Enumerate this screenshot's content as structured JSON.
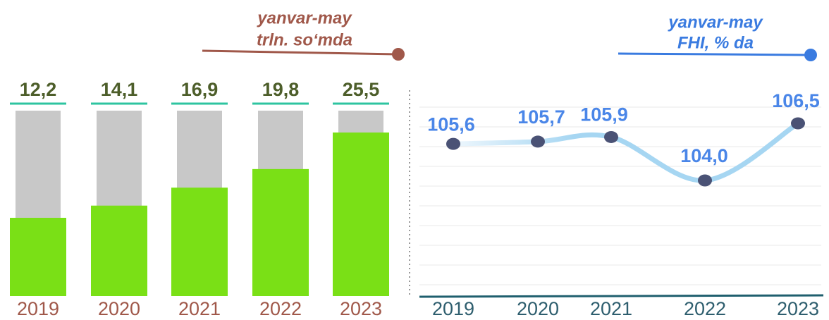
{
  "chart_data": [
    {
      "type": "bar",
      "annotation": [
        "yanvar-may",
        "trln. so‘mda"
      ],
      "categories": [
        "2019",
        "2020",
        "2021",
        "2022",
        "2023"
      ],
      "values": [
        12.2,
        14.1,
        16.9,
        19.8,
        25.5
      ],
      "value_labels": [
        "12,2",
        "14,1",
        "16,9",
        "19,8",
        "25,5"
      ],
      "color": "#7ae016"
    },
    {
      "type": "line",
      "annotation": [
        "yanvar-may",
        "FHI, % da"
      ],
      "categories": [
        "2019",
        "2020",
        "2021",
        "2022",
        "2023"
      ],
      "values": [
        105.6,
        105.7,
        105.9,
        104.0,
        106.5
      ],
      "value_labels": [
        "105,6",
        "105,7",
        "105,9",
        "104,0",
        "106,5"
      ],
      "color": "#a6d6f2"
    }
  ]
}
